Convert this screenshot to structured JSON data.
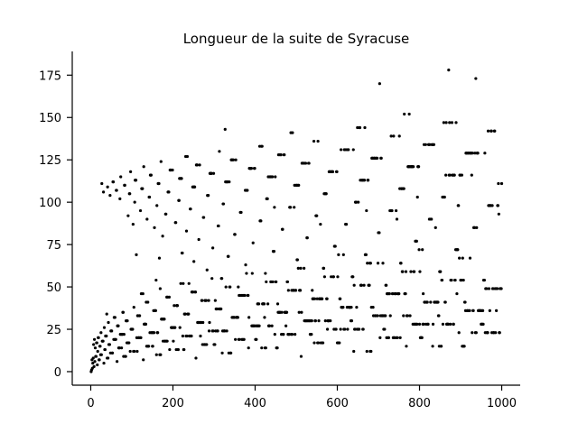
{
  "chart_data": {
    "type": "scatter",
    "title": "Longueur de la suite de Syracuse",
    "xlabel": "",
    "ylabel": "",
    "xlim": [
      -45,
      1045
    ],
    "ylim": [
      -8,
      189
    ],
    "xticks": [
      0,
      200,
      400,
      600,
      800,
      1000
    ],
    "yticks": [
      0,
      25,
      50,
      75,
      100,
      125,
      150,
      175
    ],
    "xtick_labels": [
      "0",
      "200",
      "400",
      "600",
      "800",
      "1000"
    ],
    "ytick_labels": [
      "0",
      "25",
      "50",
      "75",
      "100",
      "125",
      "150",
      "175"
    ],
    "grid": false,
    "legend": "none",
    "marker_color": "#000000",
    "x_range": [
      1,
      1000
    ],
    "y_formula": "total stopping time of the Collatz (Syracuse) sequence starting at n",
    "max_point": {
      "x": 871,
      "y": 178
    }
  }
}
